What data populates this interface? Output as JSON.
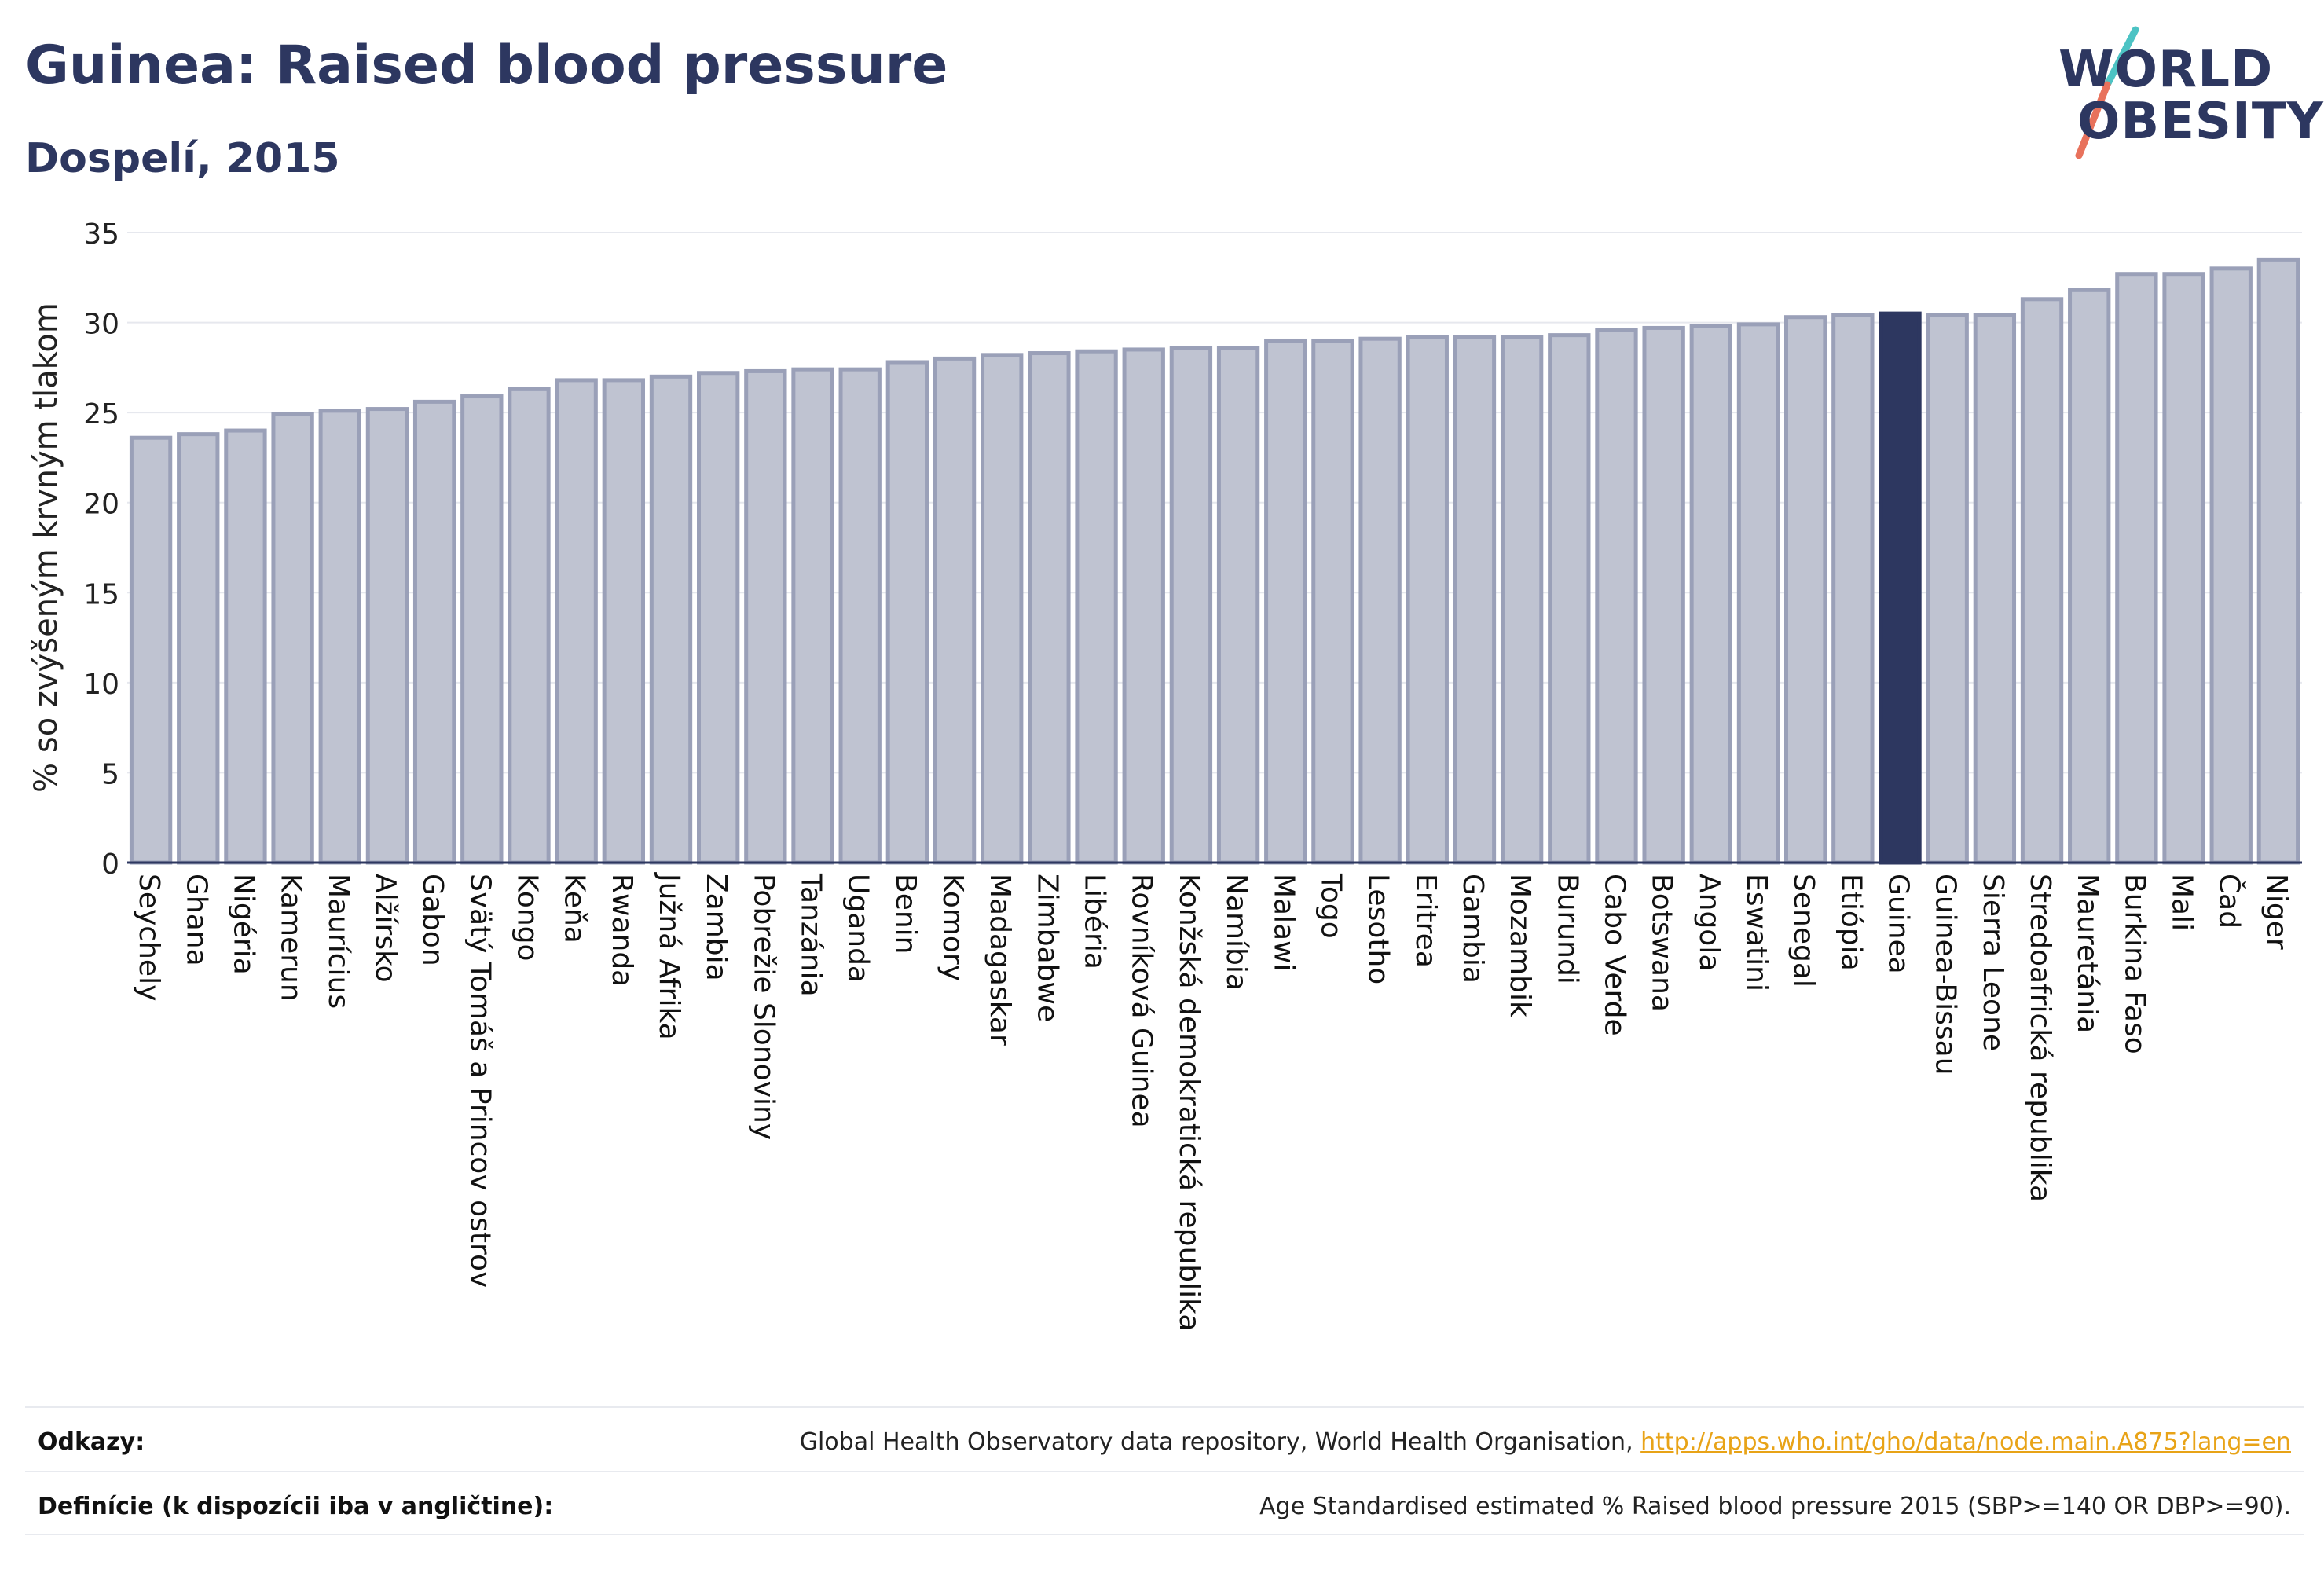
{
  "header": {
    "title": "Guinea: Raised blood pressure",
    "subtitle": "Dospelí, 2015"
  },
  "logo": {
    "line1": "WORLD",
    "line2": "OBESITY",
    "slash_colors": [
      "#4cc3c4",
      "#e8725c"
    ]
  },
  "colors": {
    "bar": "#bfc3d1",
    "bar_border": "#9aa0b8",
    "highlight": "#2d3760",
    "grid": "#e6e8ee",
    "axis": "#2d3760"
  },
  "chart_data": {
    "type": "bar",
    "ylabel": "% so zvýšeným krvným tlakom",
    "ylim": [
      0,
      35
    ],
    "yticks": [
      0,
      5,
      10,
      15,
      20,
      25,
      30,
      35
    ],
    "highlight": "Guinea",
    "categories": [
      "Seychely",
      "Ghana",
      "Nigéria",
      "Kamerun",
      "Maurícius",
      "Alžírsko",
      "Gabon",
      "Svätý Tomáš a Princov ostrov",
      "Kongo",
      "Keňa",
      "Rwanda",
      "Južná Afrika",
      "Zambia",
      "Pobrežie Slonoviny",
      "Tanzánia",
      "Uganda",
      "Benin",
      "Komory",
      "Madagaskar",
      "Zimbabwe",
      "Libéria",
      "Rovníková Guinea",
      "Konžská demokratická republika",
      "Namíbia",
      "Malawi",
      "Togo",
      "Lesotho",
      "Eritrea",
      "Gambia",
      "Mozambik",
      "Burundi",
      "Cabo Verde",
      "Botswana",
      "Angola",
      "Eswatini",
      "Senegal",
      "Etiópia",
      "Guinea",
      "Guinea-Bissau",
      "Sierra Leone",
      "Stredoafrická republika",
      "Mauretánia",
      "Burkina Faso",
      "Mali",
      "Čad",
      "Niger"
    ],
    "values": [
      23.6,
      23.8,
      24.0,
      24.9,
      25.1,
      25.2,
      25.6,
      25.9,
      26.3,
      26.8,
      26.8,
      27.0,
      27.2,
      27.3,
      27.4,
      27.4,
      27.8,
      28.0,
      28.2,
      28.3,
      28.4,
      28.5,
      28.6,
      28.6,
      29.0,
      29.0,
      29.1,
      29.2,
      29.2,
      29.2,
      29.3,
      29.6,
      29.7,
      29.8,
      29.9,
      30.3,
      30.4,
      30.5,
      30.4,
      30.4,
      31.3,
      31.8,
      32.7,
      32.7,
      33.0,
      33.5
    ]
  },
  "footer": {
    "sources_label": "Odkazy:",
    "sources_text": "Global Health Observatory data repository, World Health Organisation, ",
    "sources_link": "http://apps.who.int/gho/data/node.main.A875?lang=en",
    "definitions_label": "Definície (k dispozícii iba v angličtine):",
    "definitions_text": "Age Standardised estimated % Raised blood pressure 2015 (SBP>=140 OR DBP>=90)."
  }
}
